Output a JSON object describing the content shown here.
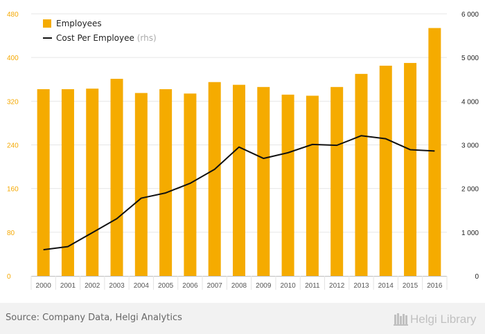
{
  "chart_data": {
    "type": "bar",
    "categories": [
      "2000",
      "2001",
      "2002",
      "2003",
      "2004",
      "2005",
      "2006",
      "2007",
      "2008",
      "2009",
      "2010",
      "2011",
      "2012",
      "2013",
      "2014",
      "2015",
      "2016"
    ],
    "series": [
      {
        "name": "Employees",
        "type": "bar",
        "axis": "left",
        "values": [
          342,
          342,
          343,
          361,
          335,
          342,
          334,
          355,
          350,
          346,
          332,
          330,
          346,
          370,
          385,
          390,
          454
        ]
      },
      {
        "name": "Cost Per Employee",
        "name_suffix": "(rhs)",
        "type": "line",
        "axis": "right",
        "values": [
          600,
          670,
          990,
          1310,
          1780,
          1900,
          2120,
          2440,
          2950,
          2690,
          2820,
          3010,
          2990,
          3210,
          3140,
          2890,
          2860
        ]
      }
    ],
    "left_axis": {
      "ylim": [
        0,
        480
      ],
      "ticks": [
        0,
        80,
        160,
        240,
        320,
        400,
        480
      ],
      "tick_labels": [
        "0",
        "80",
        "160",
        "240",
        "320",
        "400",
        "480"
      ],
      "label_color": "#f5a800"
    },
    "right_axis": {
      "ylim": [
        0,
        6000
      ],
      "ticks": [
        0,
        1000,
        2000,
        3000,
        4000,
        5000,
        6000
      ],
      "tick_labels": [
        "0",
        "1 000",
        "2 000",
        "3 000",
        "4 000",
        "5 000",
        "6 000"
      ],
      "label_color": "#222222"
    },
    "grid": true,
    "legend_position": "top-left",
    "colors": {
      "bar": "#f5ab00",
      "line": "#111111",
      "grid": "#e6e6e6",
      "axis_text": "#555555",
      "rhs_suffix": "#aaaaaa"
    }
  },
  "footer": {
    "source": "Source: Company Data, Helgi Analytics",
    "logo": "Helgi Library",
    "logo_icon": "bookshelf-icon"
  }
}
